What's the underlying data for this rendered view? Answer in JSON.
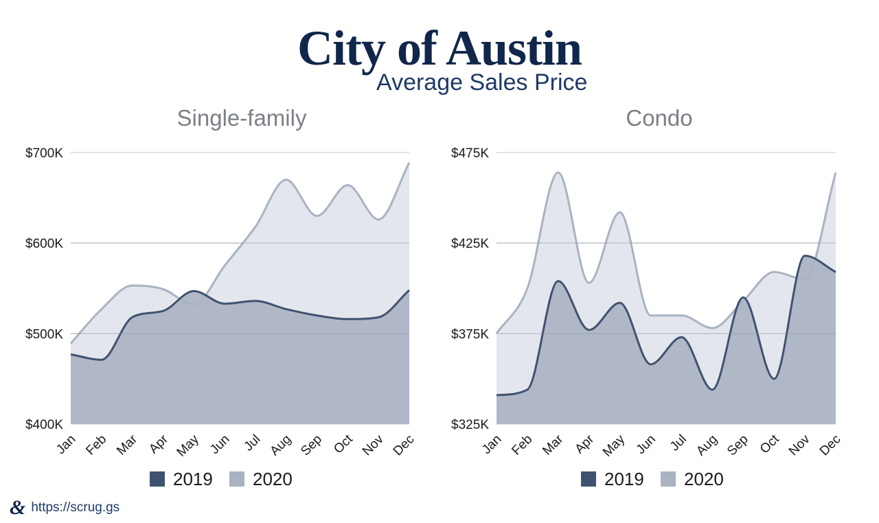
{
  "header": {
    "title": "City of Austin",
    "subtitle": "Average Sales Price"
  },
  "footer": {
    "logo_text": "&",
    "url": "https://scrug.gs"
  },
  "colors": {
    "c2019": "#3f5270",
    "c2020": "#a9b3c2",
    "fill2019": "#b0b8c7",
    "fill2020": "#e3e6ec",
    "grid": "#cfd2d8"
  },
  "chart_data": [
    {
      "type": "area",
      "title": "Single-family",
      "categories": [
        "Jan",
        "Feb",
        "Mar",
        "Apr",
        "May",
        "Jun",
        "Jul",
        "Aug",
        "Sep",
        "Oct",
        "Nov",
        "Dec"
      ],
      "ylim": [
        400,
        700
      ],
      "yticks": [
        400,
        500,
        600,
        700
      ],
      "ytick_labels": [
        "$400K",
        "$500K",
        "$600K",
        "$700K"
      ],
      "legend": "bottom",
      "series": [
        {
          "name": "2019",
          "values": [
            477,
            471,
            518,
            525,
            547,
            533,
            536,
            527,
            520,
            516,
            518,
            548
          ]
        },
        {
          "name": "2020",
          "values": [
            489,
            527,
            553,
            549,
            532,
            575,
            618,
            670,
            630,
            664,
            626,
            689
          ]
        }
      ]
    },
    {
      "type": "area",
      "title": "Condo",
      "categories": [
        "Jan",
        "Feb",
        "Mar",
        "Apr",
        "May",
        "Jun",
        "Jul",
        "Aug",
        "Sep",
        "Oct",
        "Nov",
        "Dec"
      ],
      "ylim": [
        325,
        475
      ],
      "yticks": [
        325,
        375,
        425,
        475
      ],
      "ytick_labels": [
        "$325K",
        "$375K",
        "$425K",
        "$475K"
      ],
      "legend": "bottom",
      "series": [
        {
          "name": "2019",
          "values": [
            341,
            344,
            404,
            377,
            392,
            358,
            373,
            344,
            395,
            350,
            418,
            409
          ]
        },
        {
          "name": "2020",
          "values": [
            375,
            400,
            464,
            403,
            442,
            385,
            385,
            378,
            393,
            409,
            405,
            464
          ]
        }
      ]
    }
  ]
}
